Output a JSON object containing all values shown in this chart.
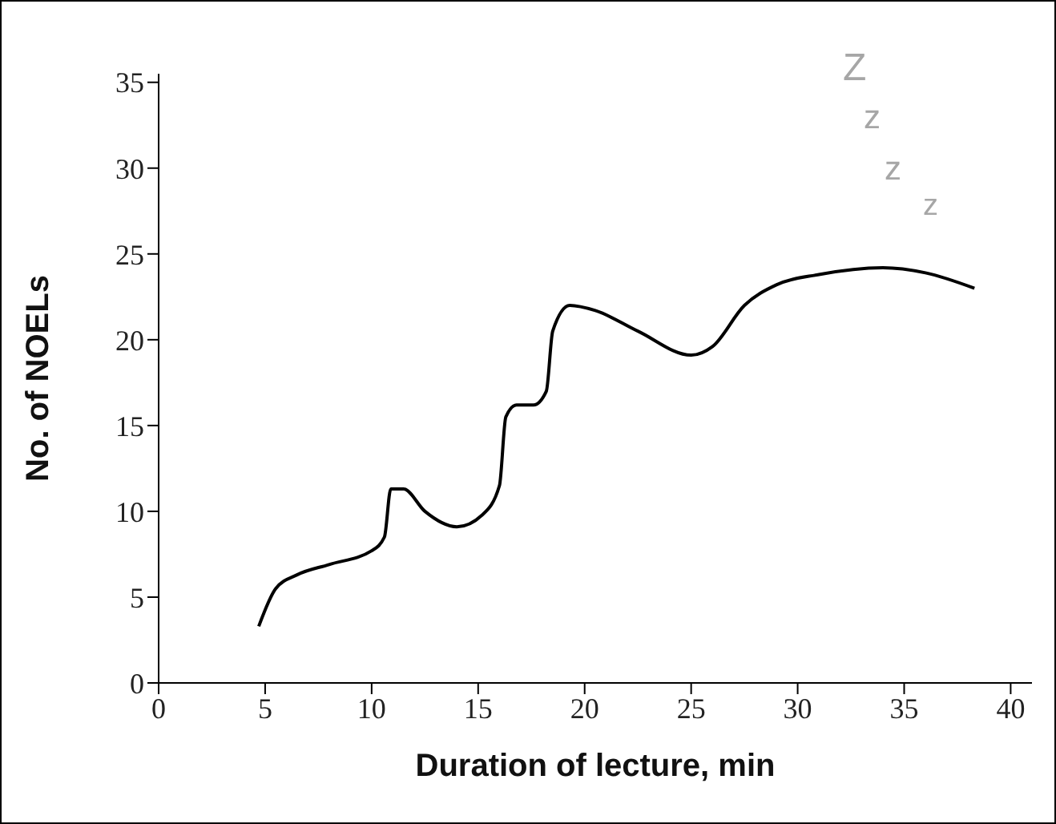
{
  "chart_data": {
    "type": "line",
    "xlabel": "Duration of lecture, min",
    "ylabel": "No. of NOELs",
    "x": [
      4.7,
      5.5,
      6.5,
      8,
      10,
      10.6,
      10.9,
      11.5,
      12.5,
      14,
      15.2,
      16,
      16.3,
      16.8,
      17.6,
      18.2,
      18.5,
      19.3,
      20.5,
      22.5,
      25,
      26,
      27.5,
      29,
      31,
      34,
      36,
      38.3
    ],
    "series": [
      {
        "color": "#000000",
        "values": [
          3.3,
          5.5,
          6.3,
          6.9,
          7.7,
          8.5,
          11.3,
          11.3,
          10,
          9.1,
          9.8,
          11.5,
          15.5,
          16.2,
          16.2,
          17,
          20.5,
          22,
          21.7,
          20.5,
          19.1,
          19.6,
          22,
          23.2,
          23.8,
          24.2,
          23.9,
          23
        ]
      }
    ],
    "xlim": [
      0,
      41
    ],
    "xticks": [
      0,
      5,
      10,
      15,
      20,
      25,
      30,
      35,
      40
    ],
    "ylim": [
      0,
      35.5
    ],
    "yticks": [
      0,
      5,
      10,
      15,
      20,
      25,
      30,
      35
    ],
    "grid": false,
    "legend": false,
    "marker": "none",
    "line_style": "solid",
    "annotations": [
      "Z",
      "z",
      "z",
      "z"
    ]
  }
}
